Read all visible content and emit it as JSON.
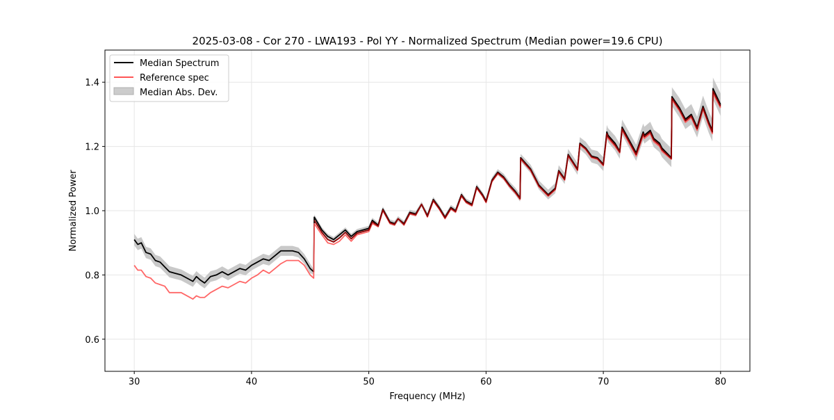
{
  "chart_data": {
    "type": "line",
    "title": "2025-03-08 - Cor 270 - LWA193 - Pol YY - Normalized Spectrum (Median power=19.6 CPU)",
    "xlabel": "Frequency (MHz)",
    "ylabel": "Normalized Power",
    "xlim": [
      27.5,
      82.5
    ],
    "ylim": [
      0.5,
      1.5
    ],
    "xticks": [
      30,
      40,
      50,
      60,
      70,
      80
    ],
    "xtick_labels": [
      "30",
      "40",
      "50",
      "60",
      "70",
      "80"
    ],
    "yticks": [
      0.6,
      0.8,
      1.0,
      1.2,
      1.4
    ],
    "ytick_labels": [
      "0.6",
      "0.8",
      "1.0",
      "1.2",
      "1.4"
    ],
    "grid": true,
    "legend_position": "top-left",
    "legend": [
      {
        "label": "Median Spectrum",
        "kind": "line",
        "color": "#000000"
      },
      {
        "label": "Reference spec",
        "kind": "line",
        "color": "#ff5555"
      },
      {
        "label": "Median Abs. Dev.",
        "kind": "band",
        "color": "#bfbfbf"
      }
    ],
    "x": [
      30.0,
      30.3,
      30.6,
      31.0,
      31.4,
      31.8,
      32.2,
      32.6,
      33.0,
      33.5,
      34.0,
      34.5,
      35.0,
      35.3,
      35.6,
      36.0,
      36.5,
      37.0,
      37.5,
      38.0,
      38.5,
      39.0,
      39.5,
      40.0,
      40.5,
      41.0,
      41.5,
      42.0,
      42.5,
      43.0,
      43.5,
      44.0,
      44.5,
      45.0,
      45.3,
      45.35,
      46.0,
      46.5,
      47.0,
      47.5,
      48.0,
      48.5,
      49.0,
      49.5,
      50.0,
      50.3,
      50.8,
      51.2,
      51.8,
      52.2,
      52.5,
      53.0,
      53.5,
      54.0,
      54.5,
      55.0,
      55.5,
      56.0,
      56.5,
      57.0,
      57.4,
      57.9,
      58.3,
      58.8,
      59.2,
      59.7,
      60.0,
      60.5,
      61.0,
      61.5,
      62.0,
      62.5,
      62.9,
      62.95,
      63.8,
      64.5,
      65.3,
      65.9,
      66.2,
      66.7,
      67.0,
      67.8,
      68.0,
      68.5,
      69.0,
      69.5,
      70.0,
      70.3,
      70.4,
      71.0,
      71.4,
      71.6,
      72.2,
      72.8,
      73.4,
      73.5,
      74.0,
      74.3,
      74.8,
      75.0,
      75.8,
      75.85,
      76.5,
      77.0,
      77.5,
      78.0,
      78.5,
      79.0,
      79.3,
      79.35,
      80.0
    ],
    "series": [
      {
        "name": "Median Spectrum",
        "color": "#000000",
        "values": [
          0.91,
          0.895,
          0.9,
          0.87,
          0.865,
          0.845,
          0.84,
          0.825,
          0.81,
          0.805,
          0.8,
          0.79,
          0.78,
          0.795,
          0.785,
          0.775,
          0.795,
          0.8,
          0.81,
          0.8,
          0.81,
          0.82,
          0.815,
          0.83,
          0.84,
          0.85,
          0.845,
          0.86,
          0.875,
          0.875,
          0.875,
          0.87,
          0.85,
          0.82,
          0.81,
          0.98,
          0.94,
          0.92,
          0.91,
          0.925,
          0.94,
          0.92,
          0.935,
          0.94,
          0.945,
          0.97,
          0.955,
          1.005,
          0.965,
          0.96,
          0.975,
          0.96,
          0.995,
          0.99,
          1.02,
          0.985,
          1.035,
          1.01,
          0.98,
          1.01,
          1.0,
          1.05,
          1.03,
          1.02,
          1.075,
          1.05,
          1.03,
          1.095,
          1.12,
          1.105,
          1.08,
          1.06,
          1.04,
          1.165,
          1.13,
          1.08,
          1.05,
          1.07,
          1.125,
          1.1,
          1.175,
          1.13,
          1.21,
          1.195,
          1.17,
          1.165,
          1.145,
          1.245,
          1.235,
          1.21,
          1.185,
          1.26,
          1.22,
          1.18,
          1.245,
          1.235,
          1.25,
          1.225,
          1.21,
          1.195,
          1.165,
          1.355,
          1.32,
          1.285,
          1.3,
          1.26,
          1.325,
          1.275,
          1.25,
          1.38,
          1.33
        ]
      },
      {
        "name": "Reference spec",
        "color": "#ff5555",
        "values": [
          0.83,
          0.815,
          0.815,
          0.795,
          0.79,
          0.775,
          0.77,
          0.765,
          0.745,
          0.745,
          0.745,
          0.735,
          0.725,
          0.735,
          0.73,
          0.73,
          0.745,
          0.755,
          0.765,
          0.76,
          0.77,
          0.78,
          0.775,
          0.79,
          0.8,
          0.815,
          0.805,
          0.82,
          0.835,
          0.845,
          0.845,
          0.845,
          0.83,
          0.8,
          0.79,
          0.96,
          0.925,
          0.9,
          0.895,
          0.905,
          0.925,
          0.905,
          0.925,
          0.93,
          0.935,
          0.96,
          0.95,
          1.0,
          0.96,
          0.955,
          0.975,
          0.955,
          0.99,
          0.985,
          1.02,
          0.98,
          1.03,
          1.005,
          0.975,
          1.005,
          0.995,
          1.045,
          1.025,
          1.015,
          1.07,
          1.045,
          1.025,
          1.09,
          1.115,
          1.1,
          1.075,
          1.055,
          1.035,
          1.16,
          1.125,
          1.075,
          1.045,
          1.065,
          1.12,
          1.095,
          1.17,
          1.125,
          1.205,
          1.19,
          1.165,
          1.16,
          1.14,
          1.235,
          1.225,
          1.2,
          1.18,
          1.25,
          1.21,
          1.17,
          1.235,
          1.225,
          1.24,
          1.215,
          1.2,
          1.185,
          1.16,
          1.345,
          1.31,
          1.275,
          1.29,
          1.25,
          1.315,
          1.265,
          1.24,
          1.365,
          1.32
        ]
      }
    ],
    "band": {
      "name": "Median Abs. Dev.",
      "color": "#bfbfbf",
      "around": "Median Spectrum",
      "halfwidth_start": 0.018,
      "halfwidth_mid": 0.008,
      "halfwidth_end": 0.035
    }
  }
}
